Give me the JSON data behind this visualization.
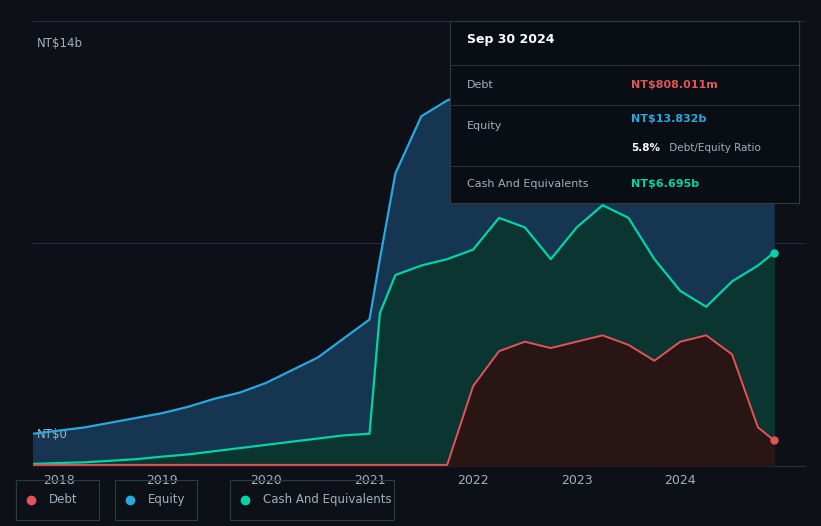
{
  "background_color": "#0d1117",
  "plot_bg_color": "#0d1117",
  "ylabel_top": "NT$14b",
  "ylabel_bottom": "NT$0",
  "x_ticks": [
    2018,
    2019,
    2020,
    2021,
    2022,
    2023,
    2024
  ],
  "equity_color": "#29a8e0",
  "cash_color": "#00d4a8",
  "debt_color": "#e05555",
  "equity_fill": "#153550",
  "cash_fill": "#0a3530",
  "debt_fill": "#2a1515",
  "grid_color": "#253040",
  "text_color": "#a0b0c0",
  "info_box_bg": "#080e14",
  "info_box_border": "#303840",
  "years": [
    2017.75,
    2018.0,
    2018.25,
    2018.5,
    2018.75,
    2019.0,
    2019.25,
    2019.5,
    2019.75,
    2020.0,
    2020.25,
    2020.5,
    2020.75,
    2021.0,
    2021.1,
    2021.25,
    2021.5,
    2021.75,
    2022.0,
    2022.25,
    2022.5,
    2022.75,
    2023.0,
    2023.25,
    2023.5,
    2023.75,
    2024.0,
    2024.25,
    2024.5,
    2024.75,
    2024.9
  ],
  "equity": [
    1.0,
    1.1,
    1.2,
    1.35,
    1.5,
    1.65,
    1.85,
    2.1,
    2.3,
    2.6,
    3.0,
    3.4,
    4.0,
    4.6,
    6.5,
    9.2,
    11.0,
    11.5,
    11.8,
    12.3,
    12.9,
    13.4,
    13.2,
    12.7,
    12.5,
    12.3,
    12.6,
    12.9,
    13.2,
    13.6,
    13.832
  ],
  "cash": [
    0.05,
    0.08,
    0.1,
    0.15,
    0.2,
    0.28,
    0.35,
    0.45,
    0.55,
    0.65,
    0.75,
    0.85,
    0.95,
    1.0,
    4.8,
    6.0,
    6.3,
    6.5,
    6.8,
    7.8,
    7.5,
    6.5,
    7.5,
    8.2,
    7.8,
    6.5,
    5.5,
    5.0,
    5.8,
    6.3,
    6.695
  ],
  "debt": [
    0.02,
    0.02,
    0.02,
    0.02,
    0.02,
    0.02,
    0.02,
    0.02,
    0.02,
    0.02,
    0.02,
    0.02,
    0.02,
    0.02,
    0.02,
    0.02,
    0.02,
    0.02,
    2.5,
    3.6,
    3.9,
    3.7,
    3.9,
    4.1,
    3.8,
    3.3,
    3.9,
    4.1,
    3.5,
    1.2,
    0.808
  ],
  "ylim": [
    0,
    14
  ],
  "xlim": [
    2017.75,
    2025.2
  ],
  "legend_labels": [
    "Debt",
    "Equity",
    "Cash And Equivalents"
  ],
  "legend_colors": [
    "#e05555",
    "#29a8e0",
    "#00d4a8"
  ],
  "info_title": "Sep 30 2024",
  "info_debt_label": "Debt",
  "info_debt_value": "NT$808.011m",
  "info_equity_label": "Equity",
  "info_equity_value": "NT$13.832b",
  "info_ratio": "5.8%",
  "info_ratio_suffix": " Debt/Equity Ratio",
  "info_cash_label": "Cash And Equivalents",
  "info_cash_value": "NT$6.695b"
}
